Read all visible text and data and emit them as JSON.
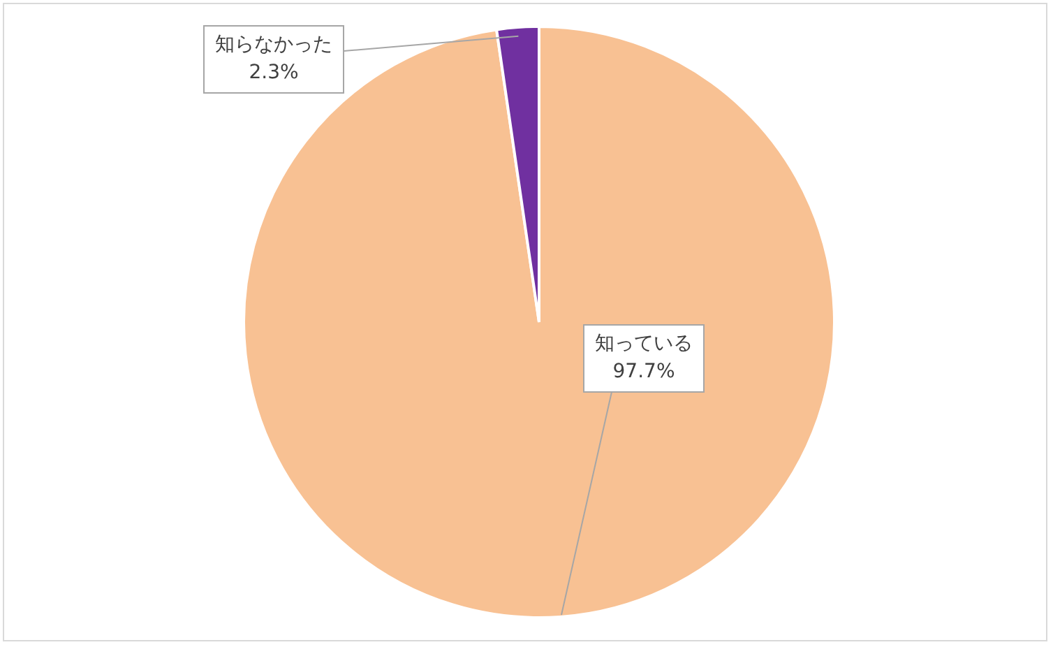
{
  "chart_data": {
    "type": "pie",
    "categories": [
      "知っている",
      "知らなかった"
    ],
    "values": [
      97.7,
      2.3
    ],
    "colors": [
      "#f8c193",
      "#7030a0"
    ],
    "value_labels": [
      "97.7%",
      "2.3%"
    ],
    "legend": false
  }
}
